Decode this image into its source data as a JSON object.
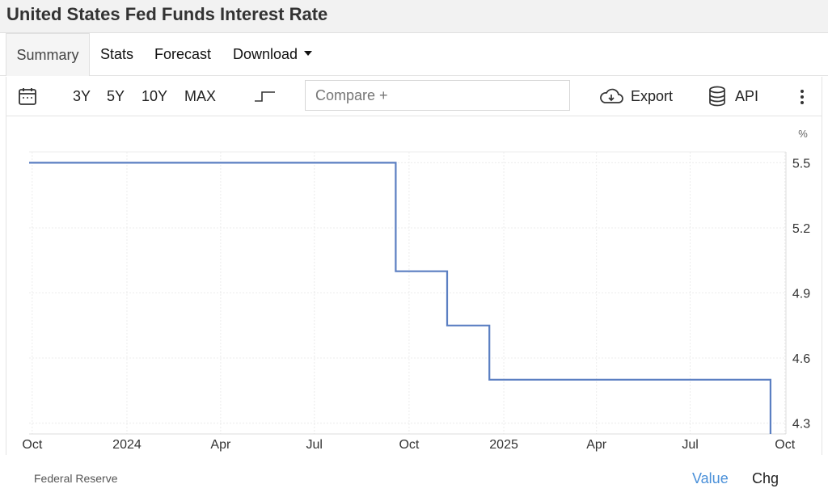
{
  "page": {
    "title": "United States Fed Funds Interest Rate"
  },
  "tabs": [
    {
      "label": "Summary"
    },
    {
      "label": "Stats"
    },
    {
      "label": "Forecast"
    },
    {
      "label": "Download"
    }
  ],
  "toolbar": {
    "ranges": [
      "3Y",
      "5Y",
      "10Y",
      "MAX"
    ],
    "compare_placeholder": "Compare +",
    "export_label": "Export",
    "api_label": "API"
  },
  "footer": {
    "source": "Federal Reserve",
    "value_label": "Value",
    "chg_label": "Chg"
  },
  "colors": {
    "line": "#5b7fc2",
    "value_link": "#4a90d9"
  },
  "chart_data": {
    "type": "line",
    "step": true,
    "unit_label": "%",
    "x_ticks": [
      "Oct",
      "2024",
      "Apr",
      "Jul",
      "Oct",
      "2025",
      "Apr",
      "Jul",
      "Oct"
    ],
    "x_tick_dates": [
      "2023-10-01",
      "2024-01-01",
      "2024-04-01",
      "2024-07-01",
      "2024-10-01",
      "2025-01-01",
      "2025-04-01",
      "2025-07-01",
      "2025-10-01"
    ],
    "y_ticks": [
      5.5,
      5.2,
      4.9,
      4.6,
      4.3
    ],
    "ylim": [
      4.25,
      5.55
    ],
    "xlim": [
      "2023-09-28",
      "2025-10-02"
    ],
    "grid": true,
    "series": [
      {
        "points": [
          {
            "x": "2023-09-28",
            "y": 5.5
          },
          {
            "x": "2024-09-18",
            "y": 5.5
          },
          {
            "x": "2024-09-18",
            "y": 5.0
          },
          {
            "x": "2024-11-07",
            "y": 5.0
          },
          {
            "x": "2024-11-07",
            "y": 4.75
          },
          {
            "x": "2024-12-18",
            "y": 4.75
          },
          {
            "x": "2024-12-18",
            "y": 4.5
          },
          {
            "x": "2025-09-17",
            "y": 4.5
          },
          {
            "x": "2025-09-17",
            "y": 4.25
          }
        ]
      }
    ]
  }
}
